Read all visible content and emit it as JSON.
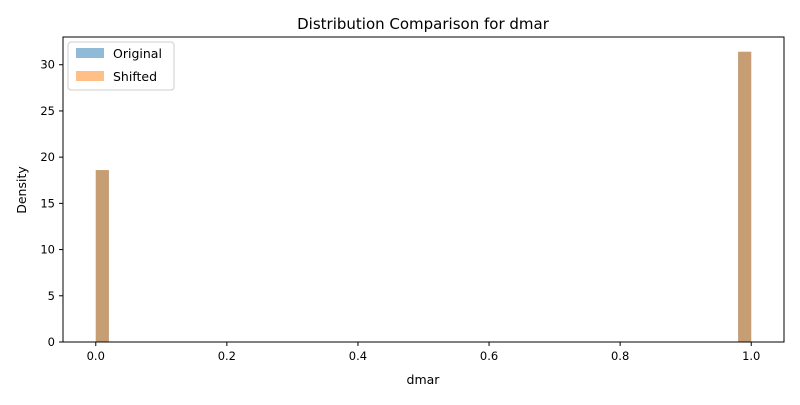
{
  "chart_data": {
    "type": "bar",
    "title": "Distribution Comparison for dmar",
    "xlabel": "dmar",
    "ylabel": "Density",
    "xlim": [
      -0.05,
      1.05
    ],
    "ylim": [
      0,
      33
    ],
    "xticks": [
      0.0,
      0.2,
      0.4,
      0.6,
      0.8,
      1.0
    ],
    "xtick_labels": [
      "0.0",
      "0.2",
      "0.4",
      "0.6",
      "0.8",
      "1.0"
    ],
    "yticks": [
      0,
      5,
      10,
      15,
      20,
      25,
      30
    ],
    "ytick_labels": [
      "0",
      "5",
      "10",
      "15",
      "20",
      "25",
      "30"
    ],
    "grid": false,
    "legend_position": "top-left",
    "series": [
      {
        "name": "Original",
        "color": "#1f77b4",
        "alpha": 0.5,
        "bins": [
          {
            "x0": 0.0,
            "x1": 0.02,
            "value": 18.6
          },
          {
            "x0": 0.98,
            "x1": 1.0,
            "value": 31.4
          }
        ]
      },
      {
        "name": "Shifted",
        "color": "#ff7f0e",
        "alpha": 0.5,
        "bins": [
          {
            "x0": 0.0,
            "x1": 0.02,
            "value": 18.6
          },
          {
            "x0": 0.98,
            "x1": 1.0,
            "value": 31.4
          }
        ]
      }
    ]
  }
}
